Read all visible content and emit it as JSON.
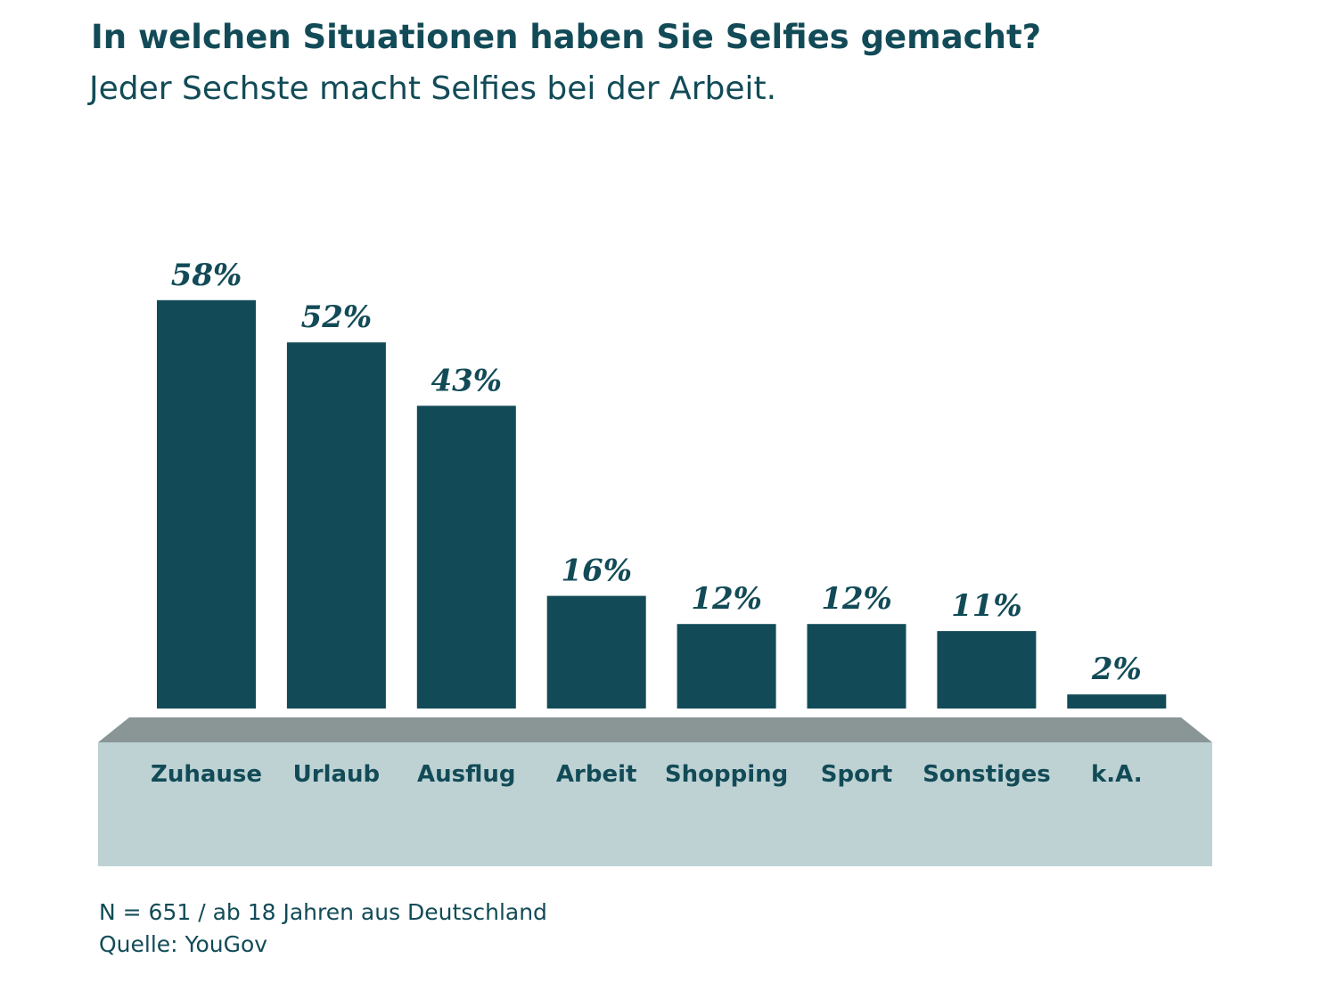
{
  "chart_data": {
    "type": "bar",
    "title": "In welchen Situationen haben Sie Selfies gemacht?",
    "subtitle": "Jeder Sechste macht Selfies bei der Arbeit.",
    "categories": [
      "Zuhause",
      "Urlaub",
      "Ausflug",
      "Arbeit",
      "Shopping",
      "Sport",
      "Sonstiges",
      "k.A."
    ],
    "values": [
      58,
      52,
      43,
      16,
      12,
      12,
      11,
      2
    ],
    "value_labels": [
      "58%",
      "52%",
      "43%",
      "16%",
      "12%",
      "12%",
      "11%",
      "2%"
    ],
    "unit": "%",
    "ylim": [
      0,
      60
    ],
    "grid": false,
    "legend": "none"
  },
  "footnotes": {
    "sample": "N = 651 / ab 18 Jahren aus Deutschland",
    "source": "Quelle: YouGov"
  },
  "colors": {
    "bar": "#124b57",
    "text": "#124b57",
    "base_top": "#8a9696",
    "base_front": "#bed2d4"
  }
}
